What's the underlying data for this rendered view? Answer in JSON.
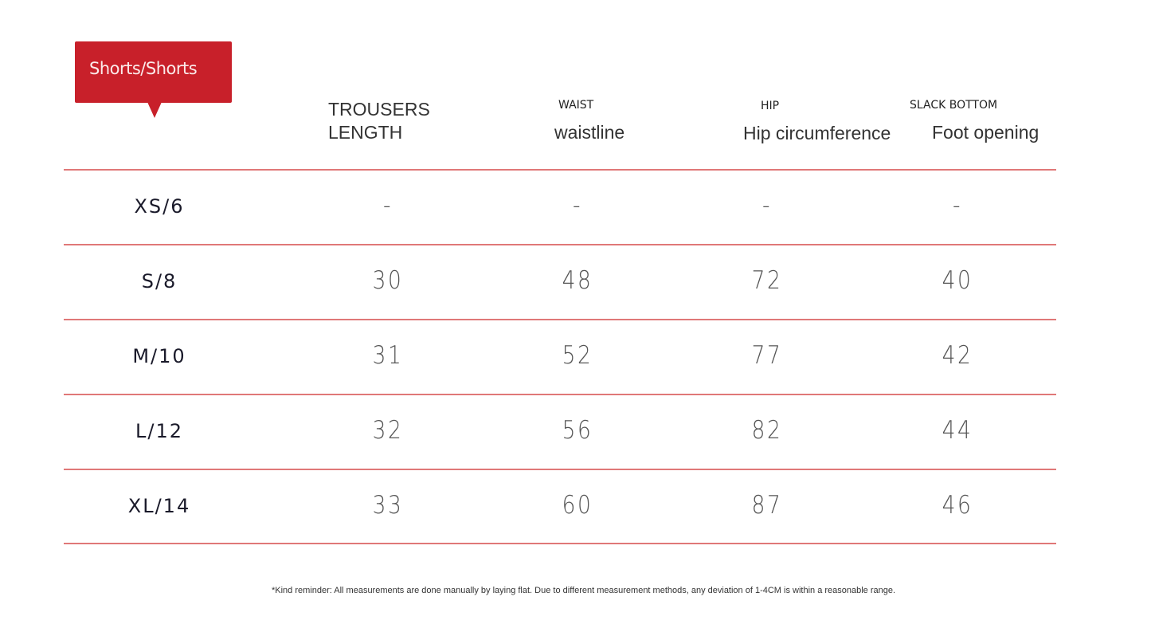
{
  "colors": {
    "accent": "#c8202a",
    "divider": "#e07878"
  },
  "tag": {
    "label": "Shorts/Shorts"
  },
  "headers": [
    {
      "small": "",
      "big_line1": "TROUSERS",
      "big_line2": "LENGTH"
    },
    {
      "small": "WAIST",
      "big": "waistline"
    },
    {
      "small": "HIP",
      "big": "Hip circumference"
    },
    {
      "small": "SLACK BOTTOM",
      "big": "Foot opening"
    }
  ],
  "rows": [
    {
      "size": "XS/6",
      "values": [
        "-",
        "-",
        "-",
        "-"
      ]
    },
    {
      "size": "S/8",
      "values": [
        "30",
        "48",
        "72",
        "40"
      ]
    },
    {
      "size": "M/10",
      "values": [
        "31",
        "52",
        "77",
        "42"
      ]
    },
    {
      "size": "L/12",
      "values": [
        "32",
        "56",
        "82",
        "44"
      ]
    },
    {
      "size": "XL/14",
      "values": [
        "33",
        "60",
        "87",
        "46"
      ]
    }
  ],
  "note": "*Kind reminder: All measurements are done manually by laying flat. Due to different measurement methods, any deviation of 1-4CM is within a reasonable range."
}
